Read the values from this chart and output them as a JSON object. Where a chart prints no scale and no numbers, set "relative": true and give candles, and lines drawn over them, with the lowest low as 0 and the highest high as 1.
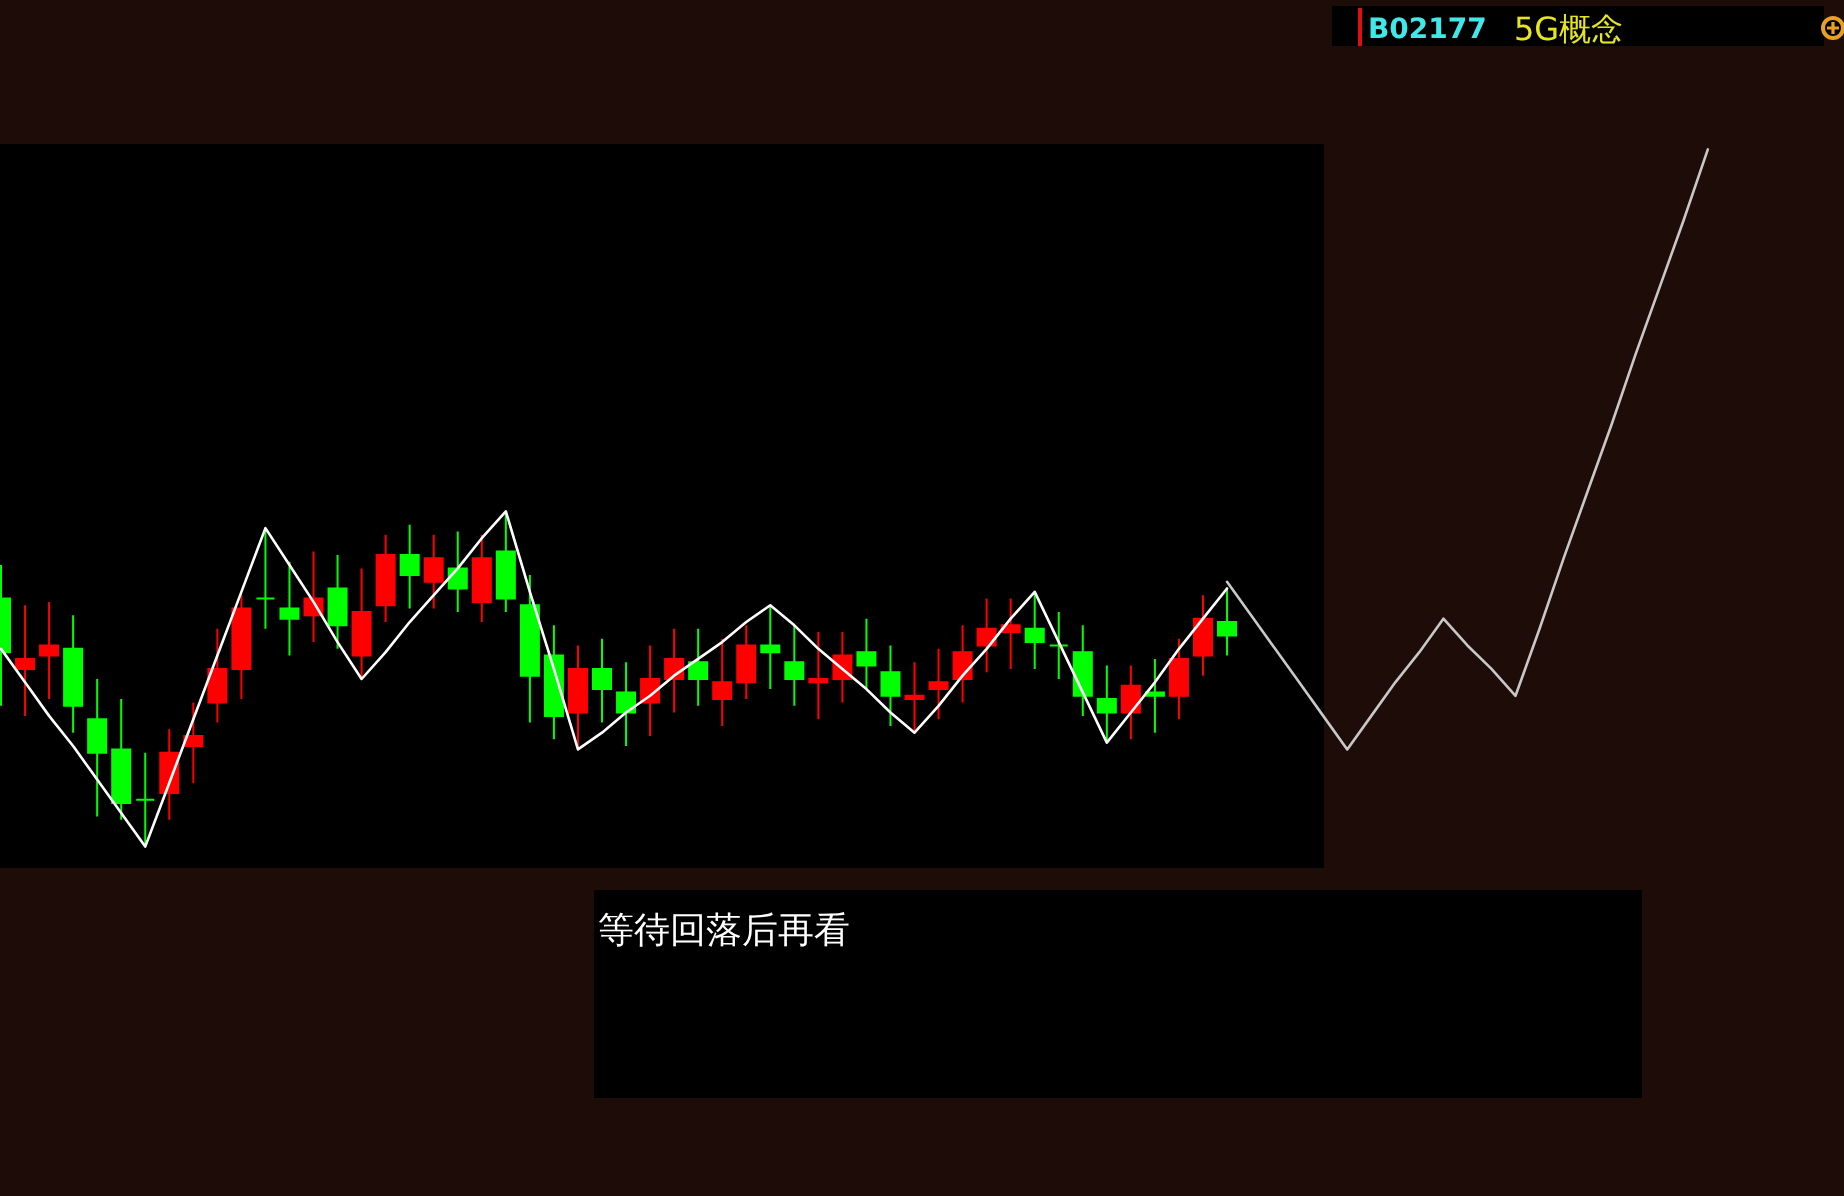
{
  "chart_data": {
    "type": "candlestick",
    "relative": true,
    "categories": [
      null,
      null,
      null,
      null,
      null,
      null,
      null,
      null,
      null,
      null,
      null,
      null,
      null,
      null,
      null,
      null,
      null,
      null,
      null,
      null,
      null,
      null,
      null,
      null,
      null,
      null,
      null,
      null,
      null,
      null,
      null,
      null,
      null,
      null,
      null,
      null,
      null,
      null,
      null,
      null,
      null,
      null,
      null,
      null,
      null,
      null,
      null,
      null,
      null,
      null,
      null,
      null,
      null,
      null,
      null,
      null,
      null,
      null,
      null,
      null,
      null,
      null,
      null,
      null,
      null,
      null,
      null,
      null,
      null,
      null,
      null,
      null
    ],
    "ohlc": [
      [
        0.74,
        0.84,
        0.42,
        0.58
      ],
      [
        0.53,
        0.72,
        0.39,
        0.56
      ],
      [
        0.57,
        0.73,
        0.44,
        0.6
      ],
      [
        0.59,
        0.69,
        0.34,
        0.42
      ],
      [
        0.38,
        0.5,
        0.09,
        0.28
      ],
      [
        0.29,
        0.44,
        0.08,
        0.13
      ],
      [
        0.14,
        0.28,
        0,
        0.14
      ],
      [
        0.16,
        0.35,
        0.08,
        0.28
      ],
      [
        0.3,
        0.43,
        0.19,
        0.33
      ],
      [
        0.43,
        0.65,
        0.37,
        0.53
      ],
      [
        0.53,
        0.75,
        0.44,
        0.71
      ],
      [
        0.74,
        0.95,
        0.65,
        0.74
      ],
      [
        0.71,
        0.85,
        0.57,
        0.68
      ],
      [
        0.69,
        0.88,
        0.61,
        0.74
      ],
      [
        0.77,
        0.87,
        0.59,
        0.66
      ],
      [
        0.57,
        0.83,
        0.5,
        0.7
      ],
      [
        0.72,
        0.93,
        0.67,
        0.87
      ],
      [
        0.87,
        0.96,
        0.71,
        0.81
      ],
      [
        0.79,
        0.93,
        0.71,
        0.86
      ],
      [
        0.83,
        0.94,
        0.7,
        0.77
      ],
      [
        0.73,
        0.93,
        0.67,
        0.86
      ],
      [
        0.88,
        1,
        0.7,
        0.74
      ],
      [
        0.72,
        0.81,
        0.37,
        0.51
      ],
      [
        0.57,
        0.66,
        0.32,
        0.39
      ],
      [
        0.4,
        0.6,
        0.29,
        0.53
      ],
      [
        0.53,
        0.62,
        0.37,
        0.47
      ],
      [
        0.46,
        0.55,
        0.3,
        0.4
      ],
      [
        0.43,
        0.6,
        0.33,
        0.5
      ],
      [
        0.5,
        0.65,
        0.4,
        0.56
      ],
      [
        0.55,
        0.65,
        0.42,
        0.5
      ],
      [
        0.44,
        0.62,
        0.36,
        0.49
      ],
      [
        0.49,
        0.66,
        0.44,
        0.6
      ],
      [
        0.6,
        0.72,
        0.47,
        0.58
      ],
      [
        0.55,
        0.66,
        0.42,
        0.5
      ],
      [
        0.49,
        0.64,
        0.38,
        0.5
      ],
      [
        0.5,
        0.64,
        0.43,
        0.57
      ],
      [
        0.58,
        0.68,
        0.47,
        0.54
      ],
      [
        0.52,
        0.6,
        0.36,
        0.45
      ],
      [
        0.44,
        0.55,
        0.34,
        0.45
      ],
      [
        0.47,
        0.59,
        0.38,
        0.49
      ],
      [
        0.5,
        0.66,
        0.43,
        0.58
      ],
      [
        0.6,
        0.74,
        0.52,
        0.65
      ],
      [
        0.64,
        0.74,
        0.53,
        0.66
      ],
      [
        0.65,
        0.76,
        0.53,
        0.61
      ],
      [
        0.6,
        0.7,
        0.5,
        0.6
      ],
      [
        0.58,
        0.66,
        0.39,
        0.45
      ],
      [
        0.44,
        0.54,
        0.31,
        0.4
      ],
      [
        0.4,
        0.54,
        0.32,
        0.48
      ],
      [
        0.46,
        0.56,
        0.34,
        0.45
      ],
      [
        0.45,
        0.62,
        0.38,
        0.56
      ],
      [
        0.57,
        0.75,
        0.51,
        0.68
      ],
      [
        0.67,
        0.77,
        0.57,
        0.63
      ],
      null,
      null,
      null,
      null,
      null,
      null,
      null,
      null,
      null,
      null,
      null,
      null,
      null,
      null,
      null,
      null,
      null,
      null,
      null,
      null
    ],
    "colors": [
      "#00ff00",
      "#ff0000",
      "#ff0000",
      "#00ff00",
      "#00ff00",
      "#00ff00",
      "#00ff00",
      "#ff0000",
      "#ff0000",
      "#ff0000",
      "#ff0000",
      "#00ff00",
      "#00ff00",
      "#ff0000",
      "#00ff00",
      "#ff0000",
      "#ff0000",
      "#00ff00",
      "#ff0000",
      "#00ff00",
      "#ff0000",
      "#00ff00",
      "#00ff00",
      "#00ff00",
      "#ff0000",
      "#00ff00",
      "#00ff00",
      "#ff0000",
      "#ff0000",
      "#00ff00",
      "#ff0000",
      "#ff0000",
      "#00ff00",
      "#00ff00",
      "#ff0000",
      "#ff0000",
      "#00ff00",
      "#00ff00",
      "#ff0000",
      "#ff0000",
      "#ff0000",
      "#ff0000",
      "#ff0000",
      "#00ff00",
      "#00ff00",
      "#00ff00",
      "#00ff00",
      "#ff0000",
      "#00ff00",
      "#ff0000",
      "#ff0000",
      "#00ff00",
      null,
      null,
      null,
      null,
      null,
      null,
      null,
      null,
      null,
      null,
      null,
      null,
      null,
      null,
      null,
      null,
      null,
      null,
      null,
      null
    ],
    "series": [
      {
        "type": "line",
        "color": "#ffffff",
        "values": [
          0.59,
          0.49,
          0.39,
          0.3,
          0.2,
          0.1,
          0,
          0.19,
          0.38,
          0.57,
          0.76,
          0.95,
          0.84,
          0.73,
          0.61,
          0.5,
          0.58,
          0.67,
          0.75,
          0.83,
          0.92,
          1,
          0.76,
          0.53,
          0.29,
          0.34,
          0.4,
          0.45,
          0.51,
          0.56,
          0.61,
          0.67,
          0.72,
          0.66,
          0.59,
          0.53,
          0.47,
          0.4,
          0.34,
          0.42,
          0.51,
          0.59,
          0.68,
          0.76,
          0.61,
          0.46,
          0.31,
          0.4,
          0.49,
          0.59,
          0.68,
          0.77,
          null,
          null,
          null,
          null,
          null,
          null,
          null,
          null,
          null,
          null,
          null,
          null,
          null,
          null,
          null,
          null,
          null,
          null,
          null,
          null
        ]
      },
      {
        "type": "line",
        "color": "#c8c8c8",
        "values": [
          null,
          null,
          null,
          null,
          null,
          null,
          null,
          null,
          null,
          null,
          null,
          null,
          null,
          null,
          null,
          null,
          null,
          null,
          null,
          null,
          null,
          null,
          null,
          null,
          null,
          null,
          null,
          null,
          null,
          null,
          null,
          null,
          null,
          null,
          null,
          null,
          null,
          null,
          null,
          null,
          null,
          null,
          null,
          null,
          null,
          null,
          null,
          null,
          null,
          null,
          null,
          0.79,
          0.69,
          0.59,
          0.49,
          0.39,
          0.29,
          0.39,
          0.49,
          0.58,
          0.68,
          0.6,
          0.53,
          0.45,
          0.65,
          0.86,
          1.06,
          1.26,
          1.47,
          1.67,
          1.87,
          2.08
        ]
      }
    ],
    "annotations": [
      "B02177",
      "5G概念",
      "等待回落后再看"
    ]
  }
}
